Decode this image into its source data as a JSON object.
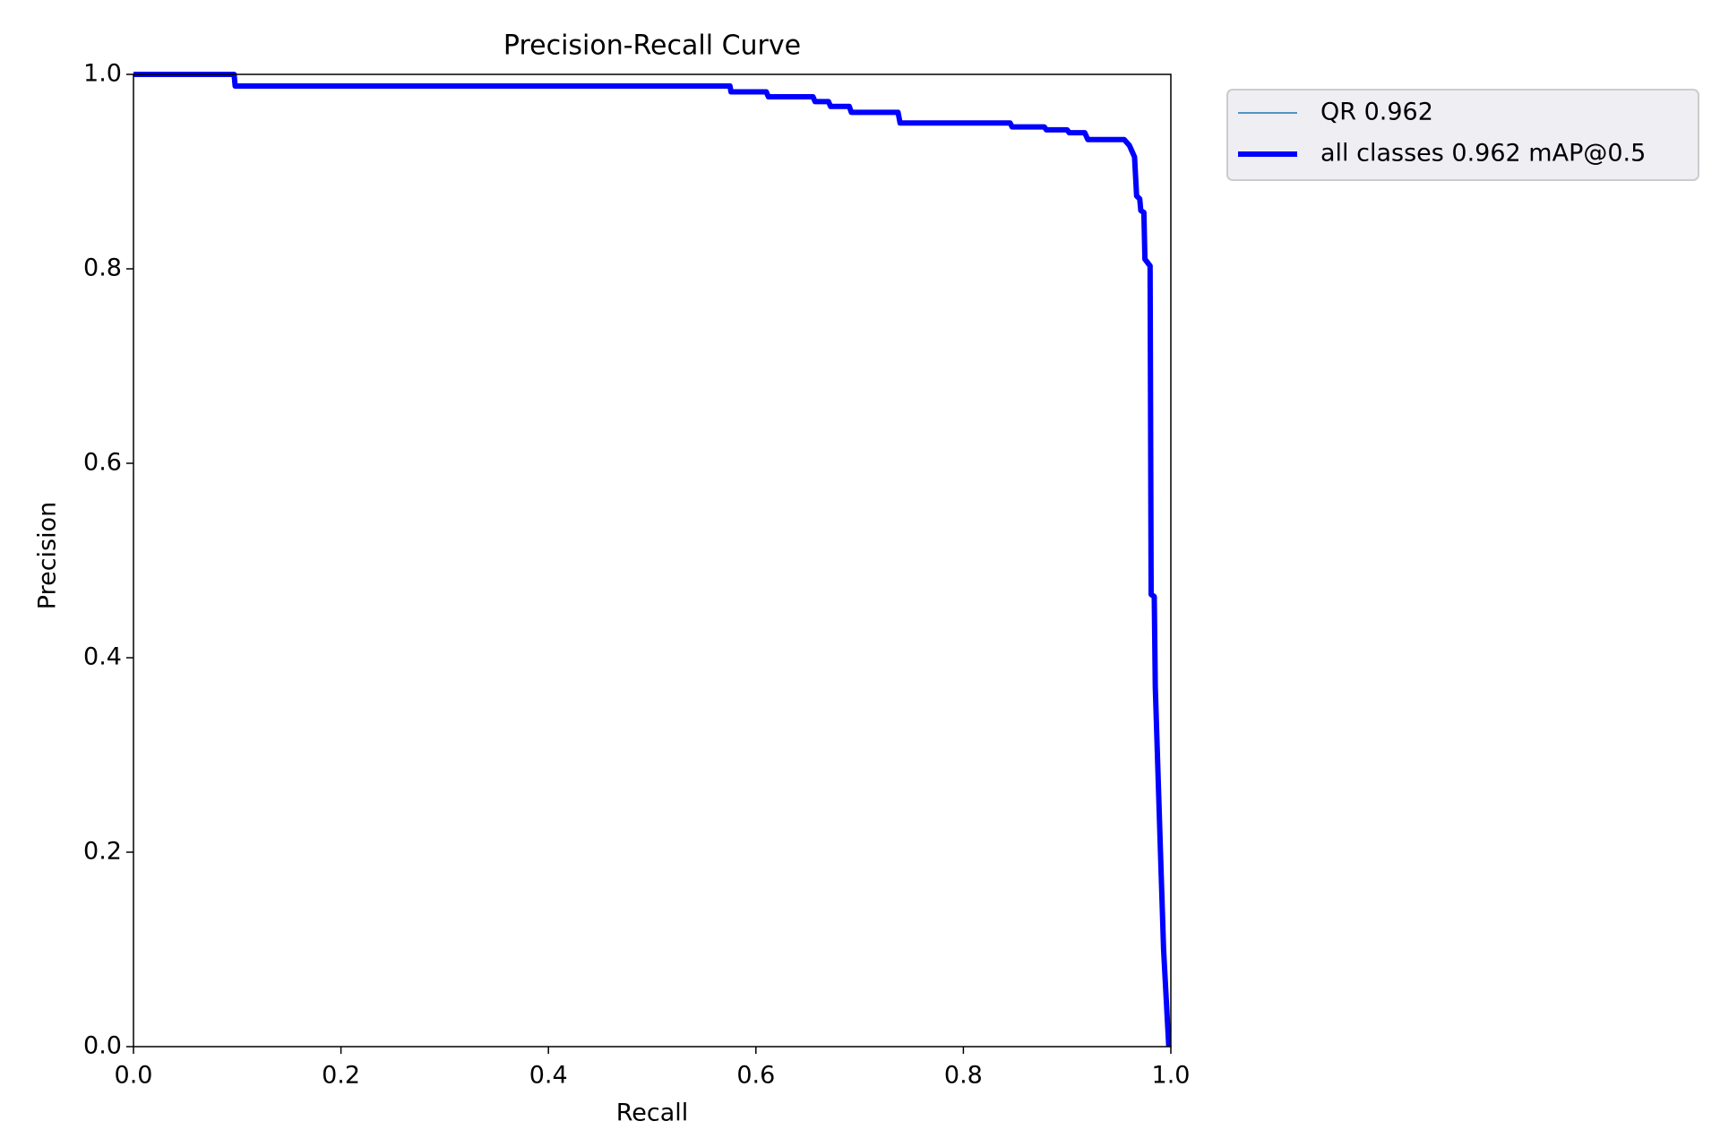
{
  "chart_data": {
    "type": "line",
    "title": "Precision-Recall Curve",
    "x_label": "Recall",
    "y_label": "Precision",
    "x": [
      0,
      0.097,
      0.098,
      0.575,
      0.576,
      0.61,
      0.612,
      0.655,
      0.657,
      0.67,
      0.672,
      0.69,
      0.692,
      0.737,
      0.739,
      0.845,
      0.847,
      0.878,
      0.88,
      0.9,
      0.902,
      0.917,
      0.92,
      0.955,
      0.96,
      0.965,
      0.967,
      0.97,
      0.971,
      0.974,
      0.975,
      0.98,
      0.981,
      0.984,
      0.985,
      0.99,
      0.993,
      0.998
    ],
    "series": [
      {
        "name": "QR 0.962",
        "color": "#1f77b4",
        "values": [
          1,
          1,
          0.988,
          0.988,
          0.982,
          0.982,
          0.977,
          0.977,
          0.972,
          0.972,
          0.967,
          0.967,
          0.961,
          0.961,
          0.95,
          0.95,
          0.946,
          0.946,
          0.943,
          0.943,
          0.94,
          0.94,
          0.933,
          0.933,
          0.927,
          0.915,
          0.875,
          0.872,
          0.86,
          0.858,
          0.81,
          0.803,
          0.465,
          0.463,
          0.37,
          0.2,
          0.1,
          0
        ]
      },
      {
        "name": "all classes 0.962 mAP@0.5",
        "color": "#0000ff",
        "values": [
          1,
          1,
          0.988,
          0.988,
          0.982,
          0.982,
          0.977,
          0.977,
          0.972,
          0.972,
          0.967,
          0.967,
          0.961,
          0.961,
          0.95,
          0.95,
          0.946,
          0.946,
          0.943,
          0.943,
          0.94,
          0.94,
          0.933,
          0.933,
          0.927,
          0.915,
          0.875,
          0.872,
          0.86,
          0.858,
          0.81,
          0.803,
          0.465,
          0.463,
          0.37,
          0.2,
          0.1,
          0
        ]
      }
    ],
    "xlim": [
      0,
      1
    ],
    "ylim": [
      0,
      1
    ],
    "xticks": [
      {
        "value": 0,
        "label": "0.0"
      },
      0.2,
      0.4,
      0.6,
      0.8,
      {
        "value": 1,
        "label": "1.0"
      }
    ],
    "yticks": [
      {
        "value": 0,
        "label": "0.0"
      },
      0.2,
      0.4,
      0.6,
      0.8,
      {
        "value": 1,
        "label": "1.0"
      }
    ],
    "grid": false
  }
}
